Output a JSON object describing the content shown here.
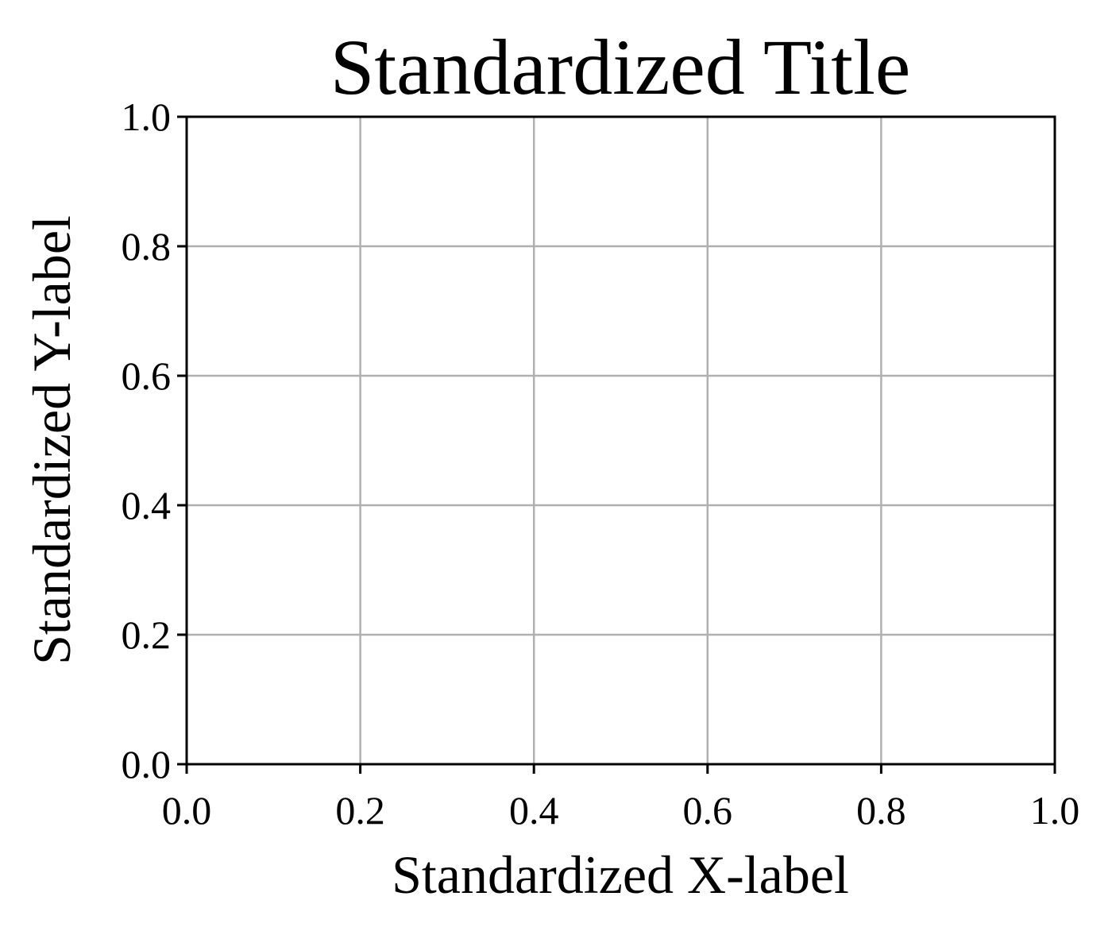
{
  "chart_data": {
    "type": "line",
    "title": "Standardized Title",
    "xlabel": "Standardized X-label",
    "ylabel": "Standardized Y-label",
    "xlim": [
      0,
      1
    ],
    "ylim": [
      0,
      1
    ],
    "xticks": [
      0.0,
      0.2,
      0.4,
      0.6,
      0.8,
      1.0
    ],
    "yticks": [
      0.0,
      0.2,
      0.4,
      0.6,
      0.8,
      1.0
    ],
    "xtick_labels": [
      "0.0",
      "0.2",
      "0.4",
      "0.6",
      "0.8",
      "1.0"
    ],
    "ytick_labels": [
      "0.0",
      "0.2",
      "0.4",
      "0.6",
      "0.8",
      "1.0"
    ],
    "grid": true,
    "series": [],
    "colors": {
      "grid": "#b0b0b0",
      "axis": "#000000",
      "background": "#ffffff"
    }
  }
}
